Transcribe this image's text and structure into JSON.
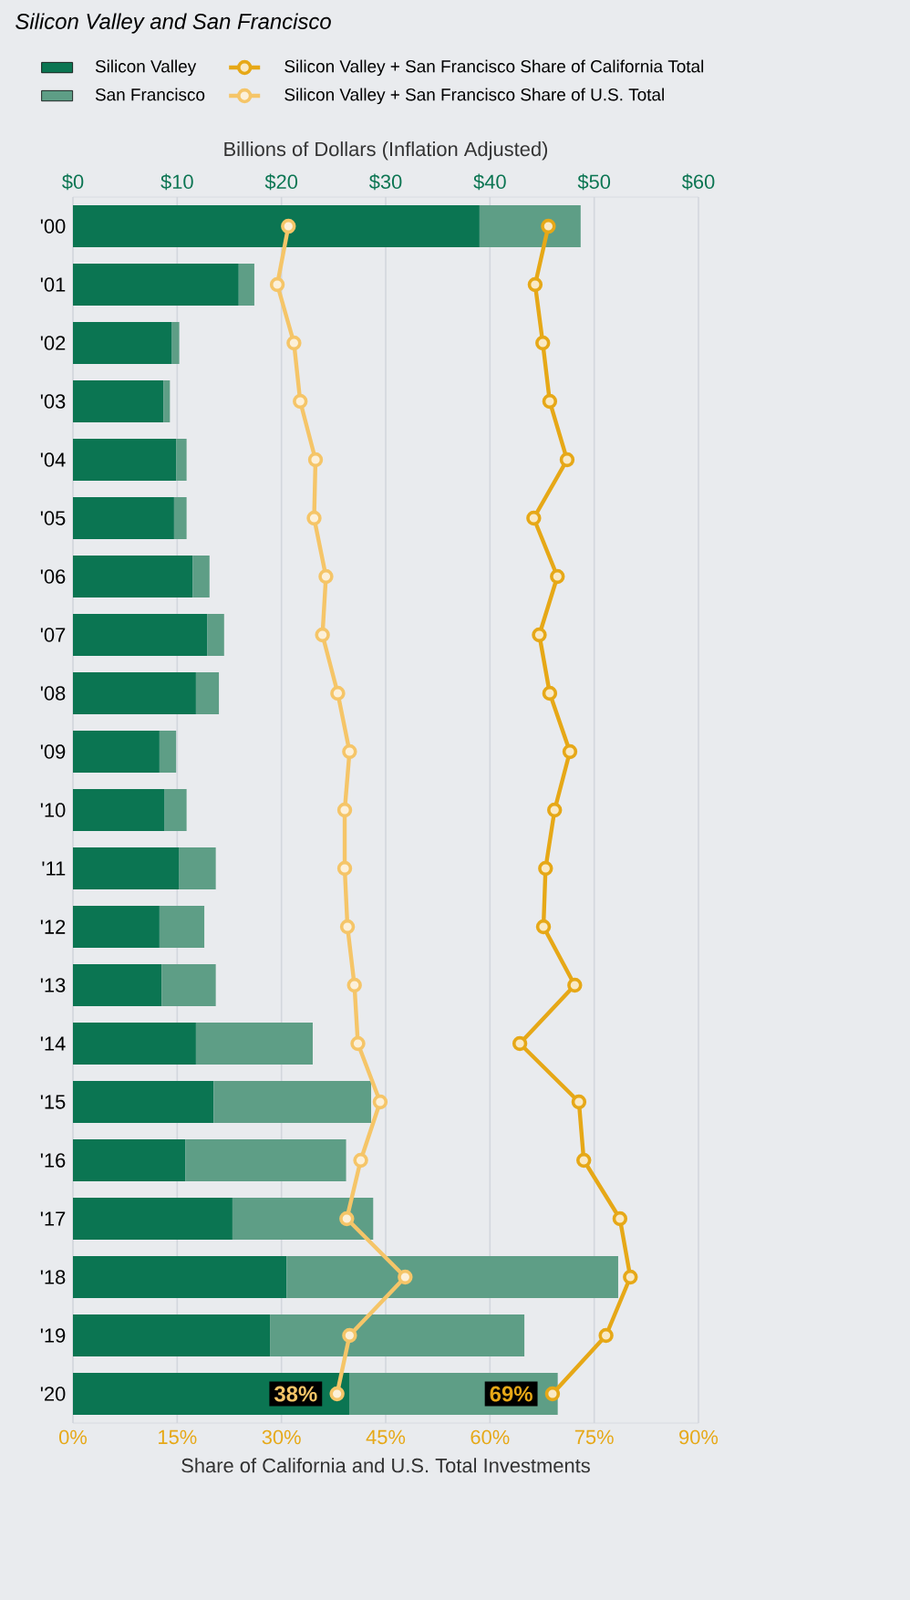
{
  "chart_data": {
    "type": "bar",
    "orientation": "horizontal",
    "title": "Silicon Valley and San Francisco",
    "xlabel": "Billions of Dollars (Inflation Adjusted)",
    "x2label": "Share of California and U.S. Total Investments",
    "categories": [
      "'00",
      "'01",
      "'02",
      "'03",
      "'04",
      "'05",
      "'06",
      "'07",
      "'08",
      "'09",
      "'10",
      "'11",
      "'12",
      "'13",
      "'14",
      "'15",
      "'16",
      "'17",
      "'18",
      "'19",
      "'20"
    ],
    "stacked": true,
    "series": [
      {
        "name": "Silicon Valley",
        "color": "#0b7552",
        "values": [
          39.0,
          15.9,
          9.5,
          8.7,
          9.9,
          9.7,
          11.5,
          12.9,
          11.8,
          8.3,
          8.8,
          10.2,
          8.3,
          8.5,
          11.8,
          13.5,
          10.8,
          15.3,
          20.5,
          18.9,
          26.5
        ]
      },
      {
        "name": "San Francisco",
        "color": "#5e9e86",
        "values": [
          9.7,
          1.5,
          0.7,
          0.6,
          1.0,
          1.2,
          1.6,
          1.6,
          2.2,
          1.6,
          2.1,
          3.5,
          4.3,
          5.2,
          11.2,
          15.1,
          15.4,
          13.5,
          31.8,
          24.4,
          20.0
        ]
      },
      {
        "name": "Silicon Valley + San Francisco Share of California Total",
        "type": "line",
        "axis": "x2",
        "color": "#e6a817",
        "values": [
          68.4,
          66.5,
          67.6,
          68.6,
          71.1,
          66.3,
          69.7,
          67.1,
          68.6,
          71.5,
          69.3,
          68.0,
          67.7,
          72.2,
          64.3,
          72.8,
          73.5,
          78.7,
          80.2,
          76.7,
          69
        ],
        "value_labels": [
          null,
          null,
          null,
          null,
          null,
          null,
          null,
          null,
          null,
          null,
          null,
          null,
          null,
          null,
          null,
          null,
          null,
          null,
          null,
          null,
          "69%"
        ]
      },
      {
        "name": "Silicon Valley + San Francisco Share of U.S. Total",
        "type": "line",
        "axis": "x2",
        "color": "#f5c568",
        "values": [
          31.0,
          29.4,
          31.8,
          32.7,
          34.9,
          34.7,
          36.4,
          35.9,
          38.1,
          39.8,
          39.1,
          39.1,
          39.5,
          40.5,
          41.0,
          44.2,
          41.4,
          39.4,
          47.8,
          39.8,
          38
        ],
        "value_labels": [
          null,
          null,
          null,
          null,
          null,
          null,
          null,
          null,
          null,
          null,
          null,
          null,
          null,
          null,
          null,
          null,
          null,
          null,
          null,
          null,
          "38%"
        ]
      }
    ],
    "xlim": [
      0,
      60
    ],
    "xticks": [
      {
        "value": 0,
        "label": "$0"
      },
      {
        "value": 10,
        "label": "$10"
      },
      {
        "value": 20,
        "label": "$20"
      },
      {
        "value": 30,
        "label": "$30"
      },
      {
        "value": 40,
        "label": "$40"
      },
      {
        "value": 50,
        "label": "$50"
      },
      {
        "value": 60,
        "label": "$60"
      }
    ],
    "x2lim": [
      0,
      90
    ],
    "x2ticks": [
      {
        "value": 0,
        "label": "0%"
      },
      {
        "value": 15,
        "label": "15%"
      },
      {
        "value": 30,
        "label": "30%"
      },
      {
        "value": 45,
        "label": "45%"
      },
      {
        "value": 60,
        "label": "60%"
      },
      {
        "value": 75,
        "label": "75%"
      },
      {
        "value": 90,
        "label": "90%"
      }
    ],
    "grid": "x",
    "legend": "top",
    "marker": "circle",
    "line_style": "solid"
  }
}
